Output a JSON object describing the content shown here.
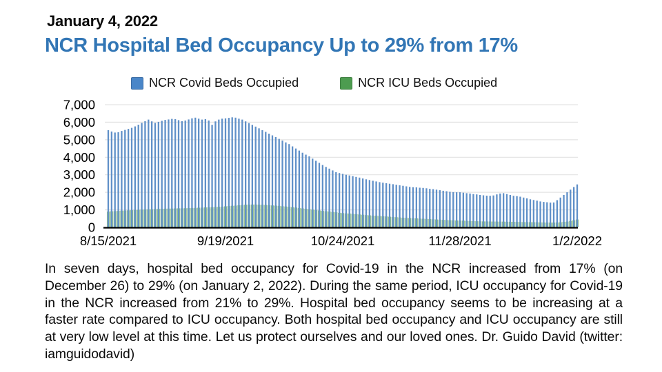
{
  "header": {
    "date": "January 4, 2022",
    "title": "NCR Hospital Bed Occupancy Up to 29% from 17%",
    "title_color": "#3276b5"
  },
  "legend": [
    {
      "label": "NCR Covid Beds Occupied",
      "color": "#4a86c8"
    },
    {
      "label": "NCR ICU Beds Occupied",
      "color": "#4d9c50"
    }
  ],
  "chart_data": {
    "type": "bar",
    "title": "",
    "xlabel": "",
    "ylabel": "",
    "ylim": [
      0,
      7000
    ],
    "grid": true,
    "legend_position": "top",
    "gridline_color": "#e3e3e3",
    "axis_line_color": "#000000",
    "x_start_date": "8/15/2021",
    "x_end_date": "1/2/2022",
    "x_ticks": [
      {
        "label": "8/15/2021",
        "day": 0
      },
      {
        "label": "9/19/2021",
        "day": 35
      },
      {
        "label": "10/24/2021",
        "day": 70
      },
      {
        "label": "11/28/2021",
        "day": 105
      },
      {
        "label": "1/2/2022",
        "day": 140
      }
    ],
    "y_ticks": [
      0,
      1000,
      2000,
      3000,
      4000,
      5000,
      6000,
      7000
    ],
    "series": [
      {
        "name": "NCR Covid Beds Occupied",
        "color": "#6090c8",
        "values": [
          5550,
          5470,
          5410,
          5430,
          5500,
          5560,
          5620,
          5680,
          5760,
          5860,
          5960,
          6060,
          6150,
          6050,
          5960,
          6020,
          6080,
          6130,
          6160,
          6190,
          6180,
          6120,
          6060,
          6100,
          6160,
          6220,
          6260,
          6200,
          6150,
          6180,
          6100,
          5850,
          6050,
          6150,
          6200,
          6220,
          6250,
          6280,
          6260,
          6200,
          6150,
          6050,
          5950,
          5850,
          5750,
          5650,
          5550,
          5450,
          5350,
          5250,
          5150,
          5050,
          4950,
          4850,
          4750,
          4620,
          4500,
          4380,
          4260,
          4150,
          4050,
          3920,
          3800,
          3680,
          3560,
          3450,
          3350,
          3250,
          3150,
          3100,
          3050,
          3000,
          2960,
          2920,
          2880,
          2840,
          2790,
          2740,
          2700,
          2660,
          2620,
          2580,
          2550,
          2520,
          2490,
          2460,
          2430,
          2400,
          2370,
          2340,
          2310,
          2290,
          2280,
          2260,
          2250,
          2230,
          2200,
          2180,
          2150,
          2120,
          2090,
          2060,
          2030,
          2010,
          2000,
          2000,
          1980,
          1950,
          1930,
          1900,
          1880,
          1850,
          1830,
          1810,
          1800,
          1820,
          1880,
          1930,
          1950,
          1900,
          1850,
          1800,
          1780,
          1750,
          1700,
          1650,
          1600,
          1560,
          1520,
          1480,
          1450,
          1430,
          1410,
          1420,
          1550,
          1700,
          1850,
          2000,
          2150,
          2300,
          2450
        ]
      },
      {
        "name": "NCR ICU Beds Occupied",
        "color": "#92bf8b",
        "values": [
          900,
          915,
          925,
          940,
          950,
          960,
          970,
          980,
          990,
          1000,
          1010,
          1020,
          1025,
          1030,
          1040,
          1050,
          1060,
          1065,
          1070,
          1075,
          1080,
          1085,
          1090,
          1095,
          1100,
          1105,
          1110,
          1120,
          1125,
          1135,
          1140,
          1150,
          1160,
          1170,
          1180,
          1200,
          1215,
          1230,
          1240,
          1260,
          1275,
          1290,
          1295,
          1300,
          1300,
          1295,
          1285,
          1280,
          1265,
          1250,
          1240,
          1225,
          1205,
          1190,
          1170,
          1150,
          1130,
          1105,
          1080,
          1060,
          1035,
          1010,
          990,
          965,
          940,
          920,
          900,
          880,
          860,
          830,
          815,
          800,
          785,
          770,
          750,
          735,
          720,
          700,
          685,
          670,
          660,
          645,
          630,
          620,
          605,
          590,
          580,
          565,
          550,
          540,
          530,
          520,
          510,
          500,
          490,
          480,
          470,
          460,
          450,
          440,
          430,
          420,
          410,
          400,
          390,
          385,
          380,
          370,
          365,
          355,
          350,
          345,
          340,
          340,
          335,
          330,
          330,
          325,
          325,
          320,
          320,
          315,
          310,
          305,
          300,
          300,
          295,
          290,
          290,
          285,
          280,
          275,
          270,
          270,
          280,
          290,
          310,
          330,
          360,
          400,
          450
        ]
      }
    ]
  },
  "body": {
    "paragraph": "In seven days, hospital bed occupancy for Covid-19 in the NCR increased from 17% (on December 26) to 29% (on January 2, 2022). During the same period, ICU occupancy for Covid-19 in the NCR increased from 21% to 29%. Hospital bed occupancy seems to be increasing at a faster rate compared to ICU occupancy. Both hospital bed occupancy and ICU occupancy are still at very low level at this time. Let us protect ourselves and our loved ones. Dr. Guido David (twitter: iamguidodavid)"
  }
}
